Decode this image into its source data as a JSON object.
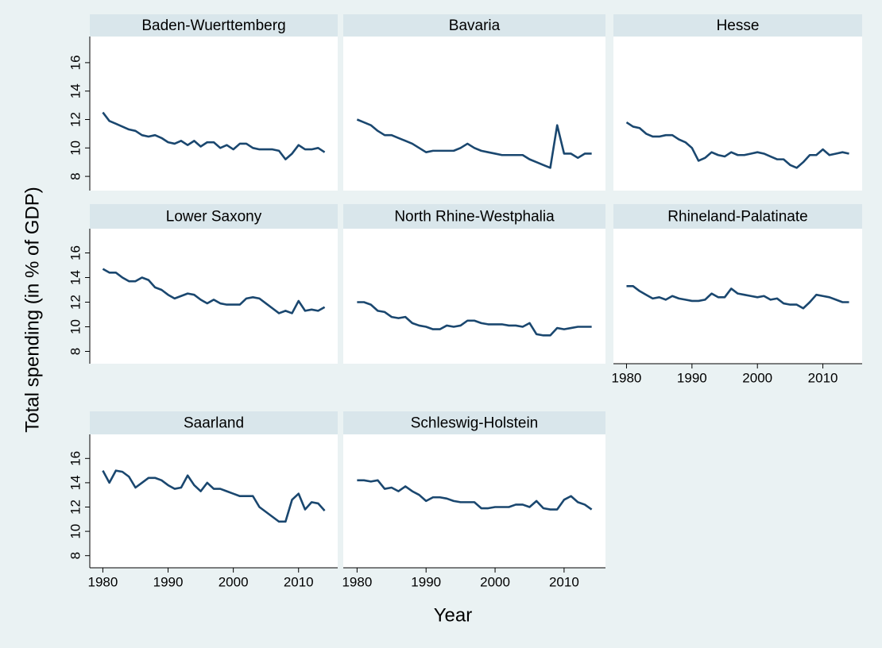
{
  "y_label": "Total spending (in % of GDP)",
  "x_label": "Year",
  "chart_data": [
    {
      "type": "line",
      "title": "Baden-Wuerttemberg",
      "color": "#1a476f",
      "xlim": [
        1978,
        2016
      ],
      "ylim": [
        7,
        17
      ],
      "yticks": [
        8,
        10,
        12,
        14,
        16
      ],
      "x": [
        1980,
        1981,
        1982,
        1983,
        1984,
        1985,
        1986,
        1987,
        1988,
        1989,
        1990,
        1991,
        1992,
        1993,
        1994,
        1995,
        1996,
        1997,
        1998,
        1999,
        2000,
        2001,
        2002,
        2003,
        2004,
        2005,
        2006,
        2007,
        2008,
        2009,
        2010,
        2011,
        2012,
        2013,
        2014
      ],
      "values": [
        12.5,
        11.9,
        11.7,
        11.5,
        11.3,
        11.2,
        10.9,
        10.8,
        10.9,
        10.7,
        10.4,
        10.3,
        10.5,
        10.2,
        10.5,
        10.1,
        10.4,
        10.4,
        10.0,
        10.2,
        9.9,
        10.3,
        10.3,
        10.0,
        9.9,
        9.9,
        9.9,
        9.8,
        9.2,
        9.6,
        10.2,
        9.9,
        9.9,
        10.0,
        9.7
      ]
    },
    {
      "type": "line",
      "title": "Bavaria",
      "color": "#1a476f",
      "xlim": [
        1978,
        2016
      ],
      "ylim": [
        7,
        17
      ],
      "x": [
        1980,
        1981,
        1982,
        1983,
        1984,
        1985,
        1986,
        1987,
        1988,
        1989,
        1990,
        1991,
        1992,
        1993,
        1994,
        1995,
        1996,
        1997,
        1998,
        1999,
        2000,
        2001,
        2002,
        2003,
        2004,
        2005,
        2006,
        2007,
        2008,
        2009,
        2010,
        2011,
        2012,
        2013,
        2014
      ],
      "values": [
        12.0,
        11.8,
        11.6,
        11.2,
        10.9,
        10.9,
        10.7,
        10.5,
        10.3,
        10.0,
        9.7,
        9.8,
        9.8,
        9.8,
        9.8,
        10.0,
        10.3,
        10.0,
        9.8,
        9.7,
        9.6,
        9.5,
        9.5,
        9.5,
        9.5,
        9.2,
        9.0,
        8.8,
        8.6,
        11.6,
        9.6,
        9.6,
        9.3,
        9.6,
        9.6
      ]
    },
    {
      "type": "line",
      "title": "Hesse",
      "color": "#1a476f",
      "xlim": [
        1978,
        2016
      ],
      "ylim": [
        7,
        17
      ],
      "x": [
        1980,
        1981,
        1982,
        1983,
        1984,
        1985,
        1986,
        1987,
        1988,
        1989,
        1990,
        1991,
        1992,
        1993,
        1994,
        1995,
        1996,
        1997,
        1998,
        1999,
        2000,
        2001,
        2002,
        2003,
        2004,
        2005,
        2006,
        2007,
        2008,
        2009,
        2010,
        2011,
        2012,
        2013,
        2014
      ],
      "values": [
        11.8,
        11.5,
        11.4,
        11.0,
        10.8,
        10.8,
        10.9,
        10.9,
        10.6,
        10.4,
        10.0,
        9.1,
        9.3,
        9.7,
        9.5,
        9.4,
        9.7,
        9.5,
        9.5,
        9.6,
        9.7,
        9.6,
        9.4,
        9.2,
        9.2,
        8.8,
        8.6,
        9.0,
        9.5,
        9.5,
        9.9,
        9.5,
        9.6,
        9.7,
        9.6
      ]
    },
    {
      "type": "line",
      "title": "Lower Saxony",
      "color": "#1a476f",
      "xlim": [
        1978,
        2016
      ],
      "ylim": [
        7,
        17
      ],
      "yticks": [
        8,
        10,
        12,
        14,
        16
      ],
      "x": [
        1980,
        1981,
        1982,
        1983,
        1984,
        1985,
        1986,
        1987,
        1988,
        1989,
        1990,
        1991,
        1992,
        1993,
        1994,
        1995,
        1996,
        1997,
        1998,
        1999,
        2000,
        2001,
        2002,
        2003,
        2004,
        2005,
        2006,
        2007,
        2008,
        2009,
        2010,
        2011,
        2012,
        2013,
        2014
      ],
      "values": [
        14.7,
        14.4,
        14.4,
        14.0,
        13.7,
        13.7,
        14.0,
        13.8,
        13.2,
        13.0,
        12.6,
        12.3,
        12.5,
        12.7,
        12.6,
        12.2,
        11.9,
        12.2,
        11.9,
        11.8,
        11.8,
        11.8,
        12.3,
        12.4,
        12.3,
        11.9,
        11.5,
        11.1,
        11.3,
        11.1,
        12.1,
        11.3,
        11.4,
        11.3,
        11.6
      ]
    },
    {
      "type": "line",
      "title": "North Rhine-Westphalia",
      "color": "#1a476f",
      "xlim": [
        1978,
        2016
      ],
      "ylim": [
        7,
        17
      ],
      "x": [
        1980,
        1981,
        1982,
        1983,
        1984,
        1985,
        1986,
        1987,
        1988,
        1989,
        1990,
        1991,
        1992,
        1993,
        1994,
        1995,
        1996,
        1997,
        1998,
        1999,
        2000,
        2001,
        2002,
        2003,
        2004,
        2005,
        2006,
        2007,
        2008,
        2009,
        2010,
        2011,
        2012,
        2013,
        2014
      ],
      "values": [
        12.0,
        12.0,
        11.8,
        11.3,
        11.2,
        10.8,
        10.7,
        10.8,
        10.3,
        10.1,
        10.0,
        9.8,
        9.8,
        10.1,
        10.0,
        10.1,
        10.5,
        10.5,
        10.3,
        10.2,
        10.2,
        10.2,
        10.1,
        10.1,
        10.0,
        10.3,
        9.4,
        9.3,
        9.3,
        9.9,
        9.8,
        9.9,
        10.0,
        10.0,
        10.0
      ]
    },
    {
      "type": "line",
      "title": "Rhineland-Palatinate",
      "color": "#1a476f",
      "xlim": [
        1978,
        2016
      ],
      "ylim": [
        7,
        17
      ],
      "xticks": [
        1980,
        1990,
        2000,
        2010
      ],
      "x": [
        1980,
        1981,
        1982,
        1983,
        1984,
        1985,
        1986,
        1987,
        1988,
        1989,
        1990,
        1991,
        1992,
        1993,
        1994,
        1995,
        1996,
        1997,
        1998,
        1999,
        2000,
        2001,
        2002,
        2003,
        2004,
        2005,
        2006,
        2007,
        2008,
        2009,
        2010,
        2011,
        2012,
        2013,
        2014
      ],
      "values": [
        13.3,
        13.3,
        12.9,
        12.6,
        12.3,
        12.4,
        12.2,
        12.5,
        12.3,
        12.2,
        12.1,
        12.1,
        12.2,
        12.7,
        12.4,
        12.4,
        13.1,
        12.7,
        12.6,
        12.5,
        12.4,
        12.5,
        12.2,
        12.3,
        11.9,
        11.8,
        11.8,
        11.5,
        12.0,
        12.6,
        12.5,
        12.4,
        12.2,
        12.0,
        12.0
      ]
    },
    {
      "type": "line",
      "title": "Saarland",
      "color": "#1a476f",
      "xlim": [
        1978,
        2016
      ],
      "ylim": [
        7,
        17
      ],
      "yticks": [
        8,
        10,
        12,
        14,
        16
      ],
      "xticks": [
        1980,
        1990,
        2000,
        2010
      ],
      "x": [
        1980,
        1981,
        1982,
        1983,
        1984,
        1985,
        1986,
        1987,
        1988,
        1989,
        1990,
        1991,
        1992,
        1993,
        1994,
        1995,
        1996,
        1997,
        1998,
        1999,
        2000,
        2001,
        2002,
        2003,
        2004,
        2005,
        2006,
        2007,
        2008,
        2009,
        2010,
        2011,
        2012,
        2013,
        2014
      ],
      "values": [
        15.0,
        14.0,
        15.0,
        14.9,
        14.5,
        13.6,
        14.0,
        14.4,
        14.4,
        14.2,
        13.8,
        13.5,
        13.6,
        14.6,
        13.8,
        13.3,
        14.0,
        13.5,
        13.5,
        13.3,
        13.1,
        12.9,
        12.9,
        12.9,
        12.0,
        11.6,
        11.2,
        10.8,
        10.8,
        12.6,
        13.1,
        11.8,
        12.4,
        12.3,
        11.7
      ]
    },
    {
      "type": "line",
      "title": "Schleswig-Holstein",
      "color": "#1a476f",
      "xlim": [
        1978,
        2016
      ],
      "ylim": [
        7,
        17
      ],
      "xticks": [
        1980,
        1990,
        2000,
        2010
      ],
      "x": [
        1980,
        1981,
        1982,
        1983,
        1984,
        1985,
        1986,
        1987,
        1988,
        1989,
        1990,
        1991,
        1992,
        1993,
        1994,
        1995,
        1996,
        1997,
        1998,
        1999,
        2000,
        2001,
        2002,
        2003,
        2004,
        2005,
        2006,
        2007,
        2008,
        2009,
        2010,
        2011,
        2012,
        2013,
        2014
      ],
      "values": [
        14.2,
        14.2,
        14.1,
        14.2,
        13.5,
        13.6,
        13.3,
        13.7,
        13.3,
        13.0,
        12.5,
        12.8,
        12.8,
        12.7,
        12.5,
        12.4,
        12.4,
        12.4,
        11.9,
        11.9,
        12.0,
        12.0,
        12.0,
        12.2,
        12.2,
        12.0,
        12.5,
        11.9,
        11.8,
        11.8,
        12.6,
        12.9,
        12.4,
        12.2,
        11.8
      ]
    }
  ]
}
